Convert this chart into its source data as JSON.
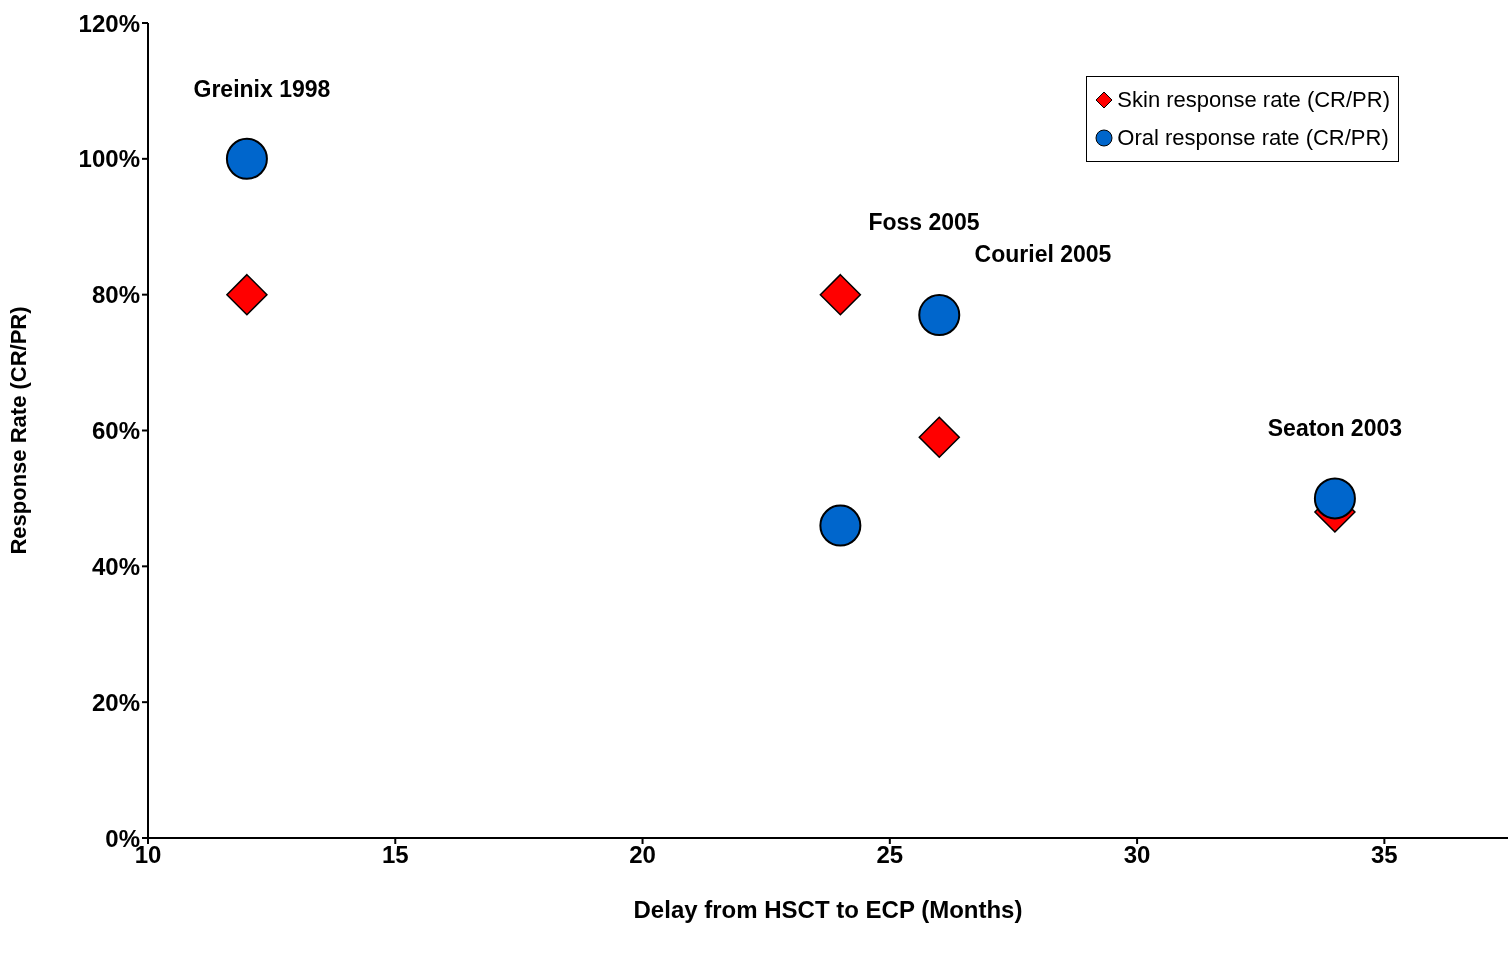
{
  "chart_data": {
    "type": "scatter",
    "xlabel": "Delay from HSCT to ECP (Months)",
    "ylabel": "Response Rate (CR/PR)",
    "xlim": [
      10,
      37.5
    ],
    "xticks": [
      10,
      15,
      20,
      25,
      30,
      35
    ],
    "ylim": [
      0,
      120
    ],
    "yticks": [
      {
        "value": 0,
        "label": "0%"
      },
      {
        "value": 20,
        "label": "20%"
      },
      {
        "value": 40,
        "label": "40%"
      },
      {
        "value": 60,
        "label": "60%"
      },
      {
        "value": 80,
        "label": "80%"
      },
      {
        "value": 100,
        "label": "100%"
      },
      {
        "value": 120,
        "label": "120%"
      }
    ],
    "grid": false,
    "legend": "top right",
    "series": [
      {
        "name": "Skin response rate (CR/PR)",
        "color": "#ff0000",
        "marker": "diamond",
        "x": [
          12,
          24,
          26,
          34
        ],
        "values": [
          80,
          80,
          59,
          48
        ]
      },
      {
        "name": "Oral response rate (CR/PR)",
        "color": "#0066cc",
        "marker": "circle",
        "x": [
          12,
          24,
          26,
          34
        ],
        "values": [
          100,
          46,
          77,
          50
        ]
      }
    ],
    "annotations": [
      {
        "text": "Greinix 1998",
        "x": 12,
        "y": 100
      },
      "Foss 2005",
      "Couriel 2005",
      {
        "text": "Seaton 2003",
        "x": 34,
        "y": 50
      }
    ]
  }
}
